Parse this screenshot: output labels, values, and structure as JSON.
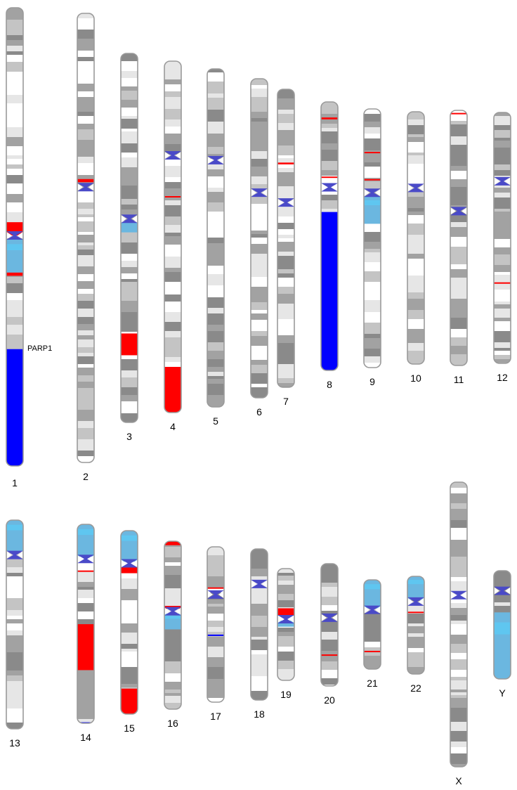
{
  "colors": {
    "outline": "#9a9a9a",
    "gap": "#ffffff",
    "gpos25": "#e6e6e6",
    "gpos50": "#c4c4c4",
    "gpos75": "#a2a2a2",
    "gpos100": "#8a8a8a",
    "centromere": "#4a4ac8",
    "loss": "#ff0000",
    "gain": "#0000ff",
    "loh": "#6bb7e0",
    "loh_light": "#5fc6f0"
  },
  "gene_labels": [
    {
      "chromosome": "1",
      "text": "PARP1"
    }
  ],
  "chromosomes": [
    {
      "name": "1",
      "centromere": 0.497,
      "events": [
        {
          "type": "loss",
          "start": 0.468,
          "end": 0.497
        },
        {
          "type": "loh",
          "start": 0.505,
          "end": 0.578
        },
        {
          "type": "loss",
          "start": 0.578,
          "end": 0.585
        },
        {
          "type": "gain",
          "start": 0.745,
          "end": 1.0
        }
      ]
    },
    {
      "name": "2",
      "centromere": 0.387,
      "events": [
        {
          "type": "loss",
          "start": 0.369,
          "end": 0.376
        }
      ]
    },
    {
      "name": "3",
      "centromere": 0.448,
      "events": [
        {
          "type": "loh",
          "start": 0.459,
          "end": 0.485
        },
        {
          "type": "loss",
          "start": 0.759,
          "end": 0.818
        }
      ]
    },
    {
      "name": "4",
      "centromere": 0.268,
      "events": [
        {
          "type": "loss",
          "start": 0.384,
          "end": 0.388
        },
        {
          "type": "loss",
          "start": 0.87,
          "end": 1.0
        }
      ]
    },
    {
      "name": "5",
      "centromere": 0.27,
      "events": []
    },
    {
      "name": "6",
      "centromere": 0.357,
      "events": []
    },
    {
      "name": "7",
      "centromere": 0.38,
      "events": [
        {
          "type": "loss",
          "start": 0.246,
          "end": 0.252
        }
      ]
    },
    {
      "name": "8",
      "centromere": 0.318,
      "events": [
        {
          "type": "loss",
          "start": 0.058,
          "end": 0.065
        },
        {
          "type": "loss",
          "start": 0.278,
          "end": 0.283
        },
        {
          "type": "gain",
          "start": 0.41,
          "end": 1.0
        }
      ]
    },
    {
      "name": "9",
      "centromere": 0.324,
      "events": [
        {
          "type": "loss",
          "start": 0.166,
          "end": 0.171
        },
        {
          "type": "loss",
          "start": 0.271,
          "end": 0.275
        },
        {
          "type": "loh",
          "start": 0.337,
          "end": 0.444
        }
      ]
    },
    {
      "name": "10",
      "centromere": 0.302,
      "events": []
    },
    {
      "name": "11",
      "centromere": 0.395,
      "events": [
        {
          "type": "loss",
          "start": 0.01,
          "end": 0.015
        }
      ]
    },
    {
      "name": "12",
      "centromere": 0.274,
      "events": [
        {
          "type": "loss",
          "start": 0.677,
          "end": 0.682
        }
      ]
    },
    {
      "name": "13",
      "centromere": 0.167,
      "events": [
        {
          "type": "loh",
          "start": 0.0,
          "end": 0.148
        }
      ]
    },
    {
      "name": "14",
      "centromere": 0.174,
      "events": [
        {
          "type": "loh",
          "start": 0.0,
          "end": 0.162
        },
        {
          "type": "loss",
          "start": 0.232,
          "end": 0.237
        },
        {
          "type": "loss",
          "start": 0.502,
          "end": 0.733
        },
        {
          "type": "gain",
          "start": 0.995,
          "end": 1.0
        }
      ]
    },
    {
      "name": "15",
      "centromere": 0.178,
      "events": [
        {
          "type": "loh",
          "start": 0.0,
          "end": 0.17
        },
        {
          "type": "loss",
          "start": 0.198,
          "end": 0.232
        },
        {
          "type": "loss",
          "start": 0.861,
          "end": 1.0
        }
      ]
    },
    {
      "name": "16",
      "centromere": 0.417,
      "events": [
        {
          "type": "loss",
          "start": 0.0,
          "end": 0.024
        },
        {
          "type": "loss",
          "start": 0.385,
          "end": 0.402
        },
        {
          "type": "loh",
          "start": 0.431,
          "end": 0.525
        }
      ]
    },
    {
      "name": "17",
      "centromere": 0.307,
      "events": [
        {
          "type": "loss",
          "start": 0.261,
          "end": 0.267
        },
        {
          "type": "gain",
          "start": 0.565,
          "end": 0.571
        }
      ]
    },
    {
      "name": "18",
      "centromere": 0.232,
      "events": []
    },
    {
      "name": "19",
      "centromere": 0.453,
      "events": [
        {
          "type": "loss",
          "start": 0.355,
          "end": 0.42
        },
        {
          "type": "loh",
          "start": 0.465,
          "end": 0.52
        }
      ]
    },
    {
      "name": "20",
      "centromere": 0.442,
      "events": [
        {
          "type": "loss",
          "start": 0.742,
          "end": 0.75
        }
      ]
    },
    {
      "name": "21",
      "centromere": 0.336,
      "events": [
        {
          "type": "loh",
          "start": 0.0,
          "end": 0.32
        },
        {
          "type": "loss",
          "start": 0.795,
          "end": 0.803
        }
      ]
    },
    {
      "name": "22",
      "centromere": 0.258,
      "events": [
        {
          "type": "loh",
          "start": 0.0,
          "end": 0.242
        },
        {
          "type": "loss",
          "start": 0.362,
          "end": 0.37
        }
      ]
    },
    {
      "name": "X",
      "centromere": 0.397,
      "events": []
    },
    {
      "name": "Y",
      "centromere": 0.186,
      "events": [
        {
          "type": "loh",
          "start": 0.385,
          "end": 1.0
        }
      ]
    }
  ]
}
